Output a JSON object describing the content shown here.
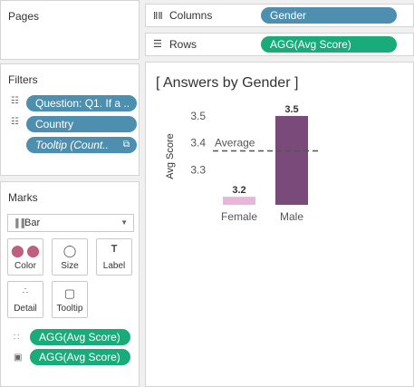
{
  "pages": {
    "title": "Pages"
  },
  "filters": {
    "title": "Filters",
    "items": [
      "Question: Q1. If a ..",
      "Country",
      "Tooltip (Count.."
    ]
  },
  "marks": {
    "title": "Marks",
    "type": "Bar",
    "buttons": [
      "Color",
      "Size",
      "Label",
      "Detail",
      "Tooltip"
    ],
    "fields": [
      "AGG(Avg Score)",
      "AGG(Avg Score)"
    ]
  },
  "shelves": {
    "columns_label": "Columns",
    "columns_pill": "Gender",
    "rows_label": "Rows",
    "rows_pill": "AGG(Avg Score)"
  },
  "chart": {
    "title": "[ Answers by Gender ]",
    "axis_label": "Avg Score",
    "reference_label": "Average"
  },
  "chart_data": {
    "type": "bar",
    "title": "[ Answers by Gender ]",
    "categories": [
      "Female",
      "Male"
    ],
    "values": [
      3.2,
      3.5
    ],
    "value_labels": [
      "3.2",
      "3.5"
    ],
    "ylabel": "Avg Score",
    "yticks": [
      "3.3",
      "3.4",
      "3.5"
    ],
    "ylim": [
      3.17,
      3.53
    ],
    "reference_line": {
      "label": "Average",
      "value": 3.37
    },
    "colors": [
      "#e8b6d9",
      "#7a4a7a"
    ]
  }
}
